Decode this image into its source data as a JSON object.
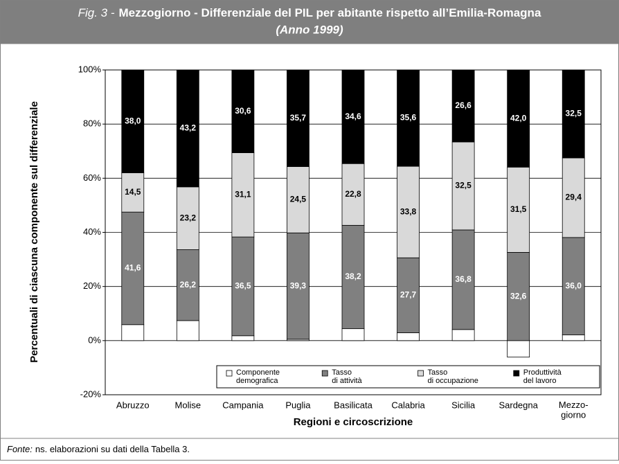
{
  "chart_data": {
    "type": "stacked_bar",
    "figure_label": "Fig. 3 -",
    "title": "Mezzogiorno - Differenziale del PIL per abitante rispetto all’Emilia-Romagna",
    "subtitle": "(Anno 1999)",
    "y_label": "Percentuali di ciascuna componente sul differenziale",
    "x_label": "Regioni e circoscrizione",
    "categories": [
      "Abruzzo",
      "Molise",
      "Campania",
      "Puglia",
      "Basilicata",
      "Calabria",
      "Sicilia",
      "Sardegna",
      "Mezzo-\ngiorno"
    ],
    "series": [
      {
        "name": "Componente\ndemografica",
        "color": "#ffffff",
        "values": [
          5.9,
          7.4,
          1.8,
          0.5,
          4.4,
          2.9,
          4.1,
          -6.1,
          2.1
        ]
      },
      {
        "name": "Tasso\ndi attività",
        "color": "#808080",
        "values": [
          41.6,
          26.2,
          36.5,
          39.3,
          38.2,
          27.7,
          36.8,
          32.6,
          36.0
        ],
        "value_labels": [
          "41,6",
          "26,2",
          "36,5",
          "39,3",
          "38,2",
          "27,7",
          "36,8",
          "32,6",
          "36,0"
        ]
      },
      {
        "name": "Tasso\ndi occupazione",
        "color": "#d9d9d9",
        "values": [
          14.5,
          23.2,
          31.1,
          24.5,
          22.8,
          33.8,
          32.5,
          31.5,
          29.4
        ],
        "value_labels": [
          "14,5",
          "23,2",
          "31,1",
          "24,5",
          "22,8",
          "33,8",
          "32,5",
          "31,5",
          "29,4"
        ]
      },
      {
        "name": "Produttività\ndel lavoro",
        "color": "#000000",
        "values": [
          38.0,
          43.2,
          30.6,
          35.7,
          34.6,
          35.6,
          26.6,
          42.0,
          32.5
        ],
        "value_labels": [
          "38,0",
          "43,2",
          "30,6",
          "35,7",
          "34,6",
          "35,6",
          "26,6",
          "42,0",
          "32,5"
        ]
      }
    ],
    "ylim": [
      -20,
      100
    ],
    "yticks": [
      {
        "value": -20,
        "label": "-20%"
      },
      {
        "value": 0,
        "label": "0%"
      },
      {
        "value": 20,
        "label": "20%"
      },
      {
        "value": 40,
        "label": "40%"
      },
      {
        "value": 60,
        "label": "60%"
      },
      {
        "value": 80,
        "label": "80%"
      },
      {
        "value": 100,
        "label": "100%"
      }
    ],
    "grid": true,
    "legend": "bottom-right",
    "source_label": "Fonte:",
    "source": "ns. elaborazioni su dati della Tabella 3."
  }
}
